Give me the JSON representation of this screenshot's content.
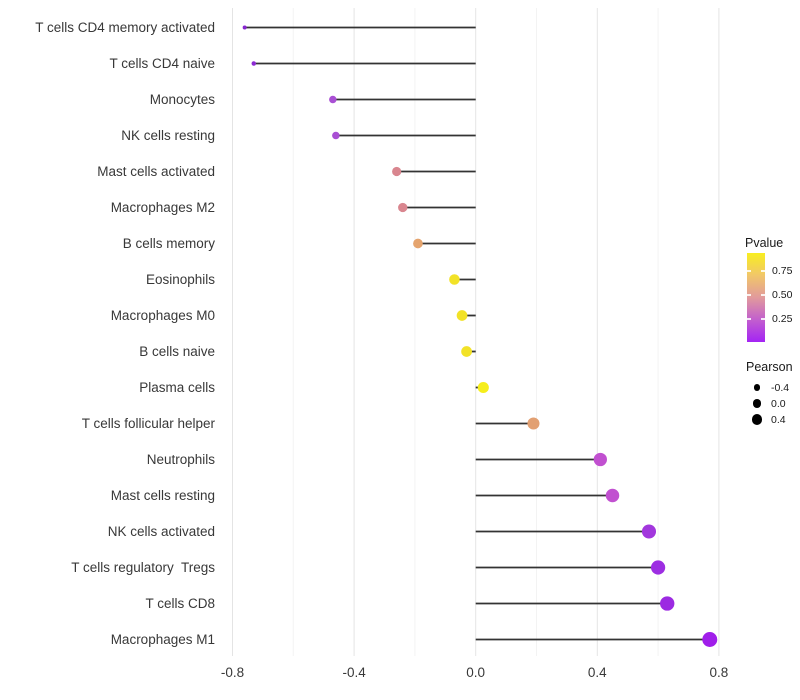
{
  "chart_data": {
    "type": "scatter",
    "variant": "lollipop",
    "orientation": "horizontal",
    "title": "",
    "xlabel": "",
    "ylabel": "",
    "xlim": [
      -0.84,
      0.84
    ],
    "x_ticks": [
      -0.8,
      -0.4,
      0.0,
      0.4,
      0.8
    ],
    "x_tick_labels": [
      "-0.8",
      "-0.4",
      "0.0",
      "0.4",
      "0.8"
    ],
    "x_minor_ticks": [
      -0.6,
      -0.2,
      0.2,
      0.6
    ],
    "grid": "on",
    "categories": [
      "T cells CD4 memory activated",
      "T cells CD4 naive",
      "Monocytes",
      "NK cells resting",
      "Mast cells activated",
      "Macrophages M2",
      "B cells memory",
      "Eosinophils",
      "Macrophages M0",
      "B cells naive",
      "Plasma cells",
      "T cells follicular helper",
      "Neutrophils",
      "Mast cells resting",
      "NK cells activated",
      "T cells regulatory  Tregs",
      "T cells CD8",
      "Macrophages M1"
    ],
    "points": [
      {
        "label": "T cells CD4 memory activated",
        "pearson": -0.76,
        "pvalue": 0.01,
        "color": "#8726cf"
      },
      {
        "label": "T cells CD4 naive",
        "pearson": -0.73,
        "pvalue": 0.02,
        "color": "#8c2ad2"
      },
      {
        "label": "Monocytes",
        "pearson": -0.47,
        "pvalue": 0.15,
        "color": "#a94fd4"
      },
      {
        "label": "NK cells resting",
        "pearson": -0.46,
        "pvalue": 0.15,
        "color": "#a94fd4"
      },
      {
        "label": "Mast cells activated",
        "pearson": -0.26,
        "pvalue": 0.45,
        "color": "#d9868f"
      },
      {
        "label": "Macrophages M2",
        "pearson": -0.24,
        "pvalue": 0.45,
        "color": "#d9868f"
      },
      {
        "label": "B cells memory",
        "pearson": -0.19,
        "pvalue": 0.58,
        "color": "#e5a46e"
      },
      {
        "label": "Eosinophils",
        "pearson": -0.07,
        "pvalue": 0.83,
        "color": "#f2e227"
      },
      {
        "label": "Macrophages M0",
        "pearson": -0.045,
        "pvalue": 0.85,
        "color": "#f2e227"
      },
      {
        "label": "B cells naive",
        "pearson": -0.03,
        "pvalue": 0.85,
        "color": "#f2e227"
      },
      {
        "label": "Plasma cells",
        "pearson": 0.025,
        "pvalue": 0.92,
        "color": "#f6ee1c"
      },
      {
        "label": "T cells follicular helper",
        "pearson": 0.19,
        "pvalue": 0.57,
        "color": "#e2a072"
      },
      {
        "label": "Neutrophils",
        "pearson": 0.41,
        "pvalue": 0.2,
        "color": "#c150d0"
      },
      {
        "label": "Mast cells resting",
        "pearson": 0.45,
        "pvalue": 0.18,
        "color": "#c150d0"
      },
      {
        "label": "NK cells activated",
        "pearson": 0.57,
        "pvalue": 0.07,
        "color": "#a237dd"
      },
      {
        "label": "T cells regulatory  Tregs",
        "pearson": 0.6,
        "pvalue": 0.05,
        "color": "#9d2ee2"
      },
      {
        "label": "T cells CD8",
        "pearson": 0.63,
        "pvalue": 0.04,
        "color": "#9c2ae2"
      },
      {
        "label": "Macrophages M1",
        "pearson": 0.77,
        "pvalue": 0.01,
        "color": "#a01eea"
      }
    ],
    "legend_pvalue": {
      "title": "Pvalue",
      "tick_labels": [
        "0.75",
        "0.50",
        "0.25"
      ],
      "tick_values": [
        0.75,
        0.5,
        0.25
      ],
      "range": [
        0.008,
        0.94
      ],
      "gradient_stops_top_to_bottom": [
        "#f8ee20",
        "#f1c769",
        "#e19a9c",
        "#c25fce",
        "#a424f4"
      ]
    },
    "legend_pearson": {
      "title": "Pearson",
      "items": [
        {
          "label": "-0.4",
          "value": -0.4
        },
        {
          "label": "0.0",
          "value": 0.0
        },
        {
          "label": "0.4",
          "value": 0.4
        }
      ],
      "dot_color": "#000000"
    },
    "style": {
      "background": "#ffffff",
      "segment_color": "#333333",
      "grid_major_color": "#e4e4e4",
      "grid_minor_color": "#f3f3f3",
      "text_color": "#1a1a1a",
      "axis_text_color": "#383838"
    }
  }
}
